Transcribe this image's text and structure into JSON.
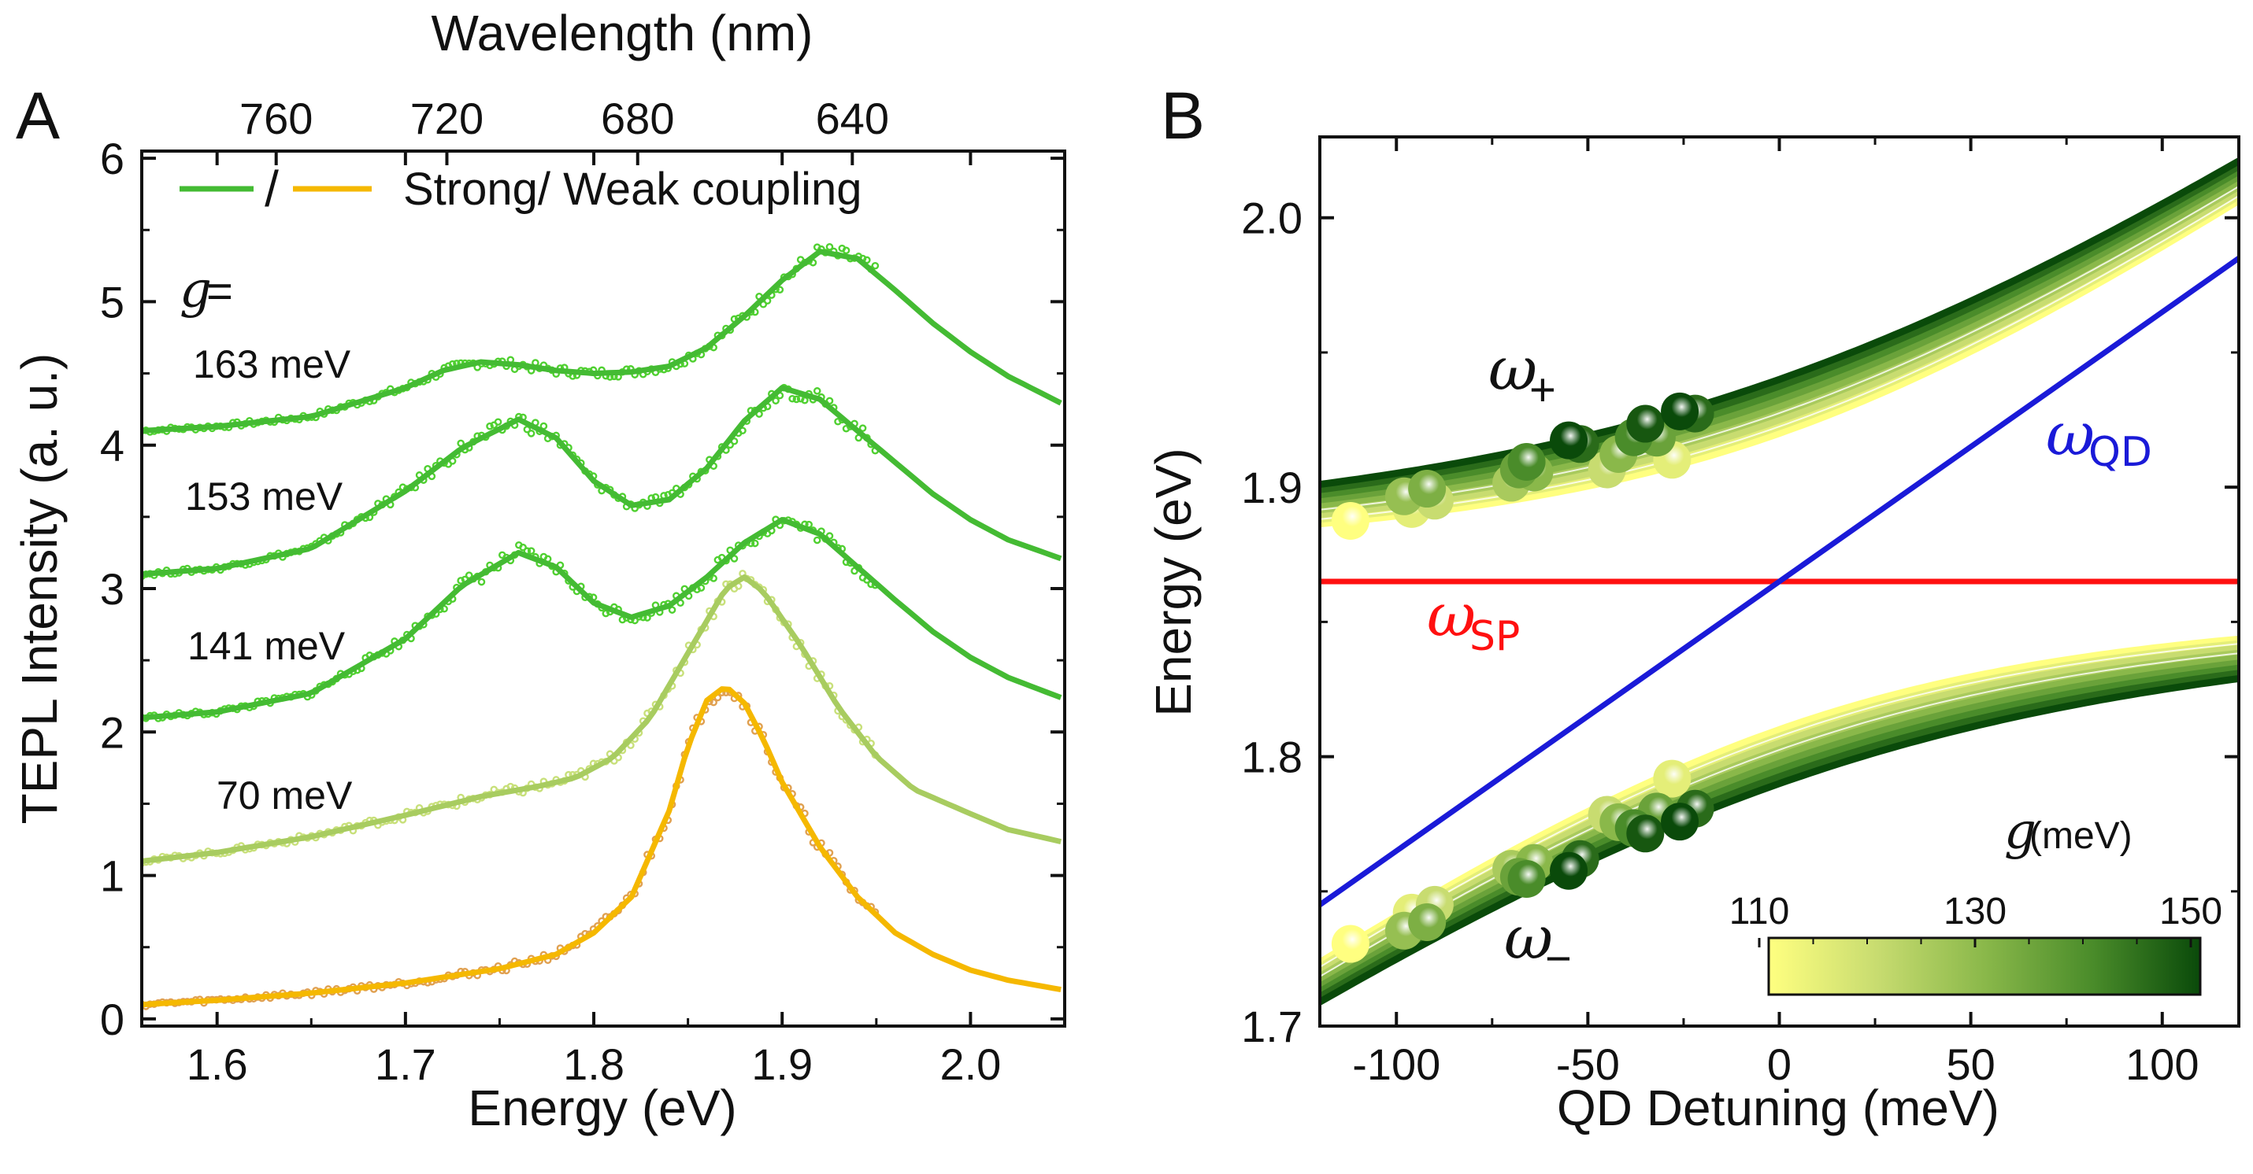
{
  "chart_data": [
    {
      "type": "line",
      "panel": "A",
      "title": "",
      "xlabel": "Energy (eV)",
      "ylabel": "TEPL Intensity (a. u.)",
      "top_xlabel": "Wavelength (nm)",
      "xlim": [
        1.56,
        2.05
      ],
      "ylim": [
        -0.05,
        6.05
      ],
      "xticks": [
        "1.6",
        "1.7",
        "1.8",
        "1.9",
        "2.0"
      ],
      "yticks": [
        "0",
        "1",
        "2",
        "3",
        "4",
        "5",
        "6"
      ],
      "top_ticks": [
        {
          "nm": 760,
          "label": "760"
        },
        {
          "nm": 720,
          "label": "720"
        },
        {
          "nm": 680,
          "label": "680"
        },
        {
          "nm": 640,
          "label": "640"
        }
      ],
      "legend": {
        "strong_symbol": "/",
        "text": "Strong/ Weak coupling",
        "strong_color": "#44bb33",
        "weak_color": "#f5b800"
      },
      "g_label": {
        "symbol": "g",
        "eq": " ="
      },
      "series": [
        {
          "name": "163 meV",
          "color": "#44bb33",
          "point_color": "#4fd030",
          "offset": 4.1,
          "fit_x": 2.05,
          "fit": [
            [
              1.56,
              0.0
            ],
            [
              1.6,
              0.03
            ],
            [
              1.65,
              0.1
            ],
            [
              1.7,
              0.3
            ],
            [
              1.72,
              0.42
            ],
            [
              1.74,
              0.48
            ],
            [
              1.76,
              0.46
            ],
            [
              1.78,
              0.42
            ],
            [
              1.8,
              0.4
            ],
            [
              1.82,
              0.41
            ],
            [
              1.84,
              0.45
            ],
            [
              1.86,
              0.58
            ],
            [
              1.88,
              0.8
            ],
            [
              1.9,
              1.05
            ],
            [
              1.92,
              1.25
            ],
            [
              1.94,
              1.2
            ],
            [
              1.96,
              0.98
            ],
            [
              1.98,
              0.75
            ],
            [
              2.0,
              0.55
            ],
            [
              2.02,
              0.38
            ],
            [
              2.05,
              0.18
            ]
          ],
          "data_x": [
            1.56,
            1.95
          ]
        },
        {
          "name": "153 meV",
          "color": "#44bb33",
          "point_color": "#4fd030",
          "offset": 3.1,
          "fit_x": 2.05,
          "fit": [
            [
              1.56,
              0.0
            ],
            [
              1.6,
              0.04
            ],
            [
              1.65,
              0.18
            ],
            [
              1.7,
              0.58
            ],
            [
              1.73,
              0.88
            ],
            [
              1.76,
              1.08
            ],
            [
              1.78,
              0.95
            ],
            [
              1.8,
              0.65
            ],
            [
              1.82,
              0.48
            ],
            [
              1.84,
              0.52
            ],
            [
              1.86,
              0.74
            ],
            [
              1.88,
              1.07
            ],
            [
              1.9,
              1.3
            ],
            [
              1.92,
              1.22
            ],
            [
              1.94,
              1.0
            ],
            [
              1.96,
              0.78
            ],
            [
              1.98,
              0.56
            ],
            [
              2.0,
              0.38
            ],
            [
              2.02,
              0.24
            ],
            [
              2.05,
              0.1
            ]
          ],
          "data_x": [
            1.56,
            1.95
          ]
        },
        {
          "name": "141 meV",
          "color": "#44bb33",
          "point_color": "#4fd030",
          "offset": 2.1,
          "fit_x": 2.05,
          "fit": [
            [
              1.56,
              0.0
            ],
            [
              1.6,
              0.04
            ],
            [
              1.65,
              0.17
            ],
            [
              1.7,
              0.55
            ],
            [
              1.73,
              0.92
            ],
            [
              1.76,
              1.15
            ],
            [
              1.78,
              1.05
            ],
            [
              1.8,
              0.8
            ],
            [
              1.82,
              0.7
            ],
            [
              1.84,
              0.78
            ],
            [
              1.86,
              0.98
            ],
            [
              1.88,
              1.22
            ],
            [
              1.9,
              1.38
            ],
            [
              1.92,
              1.28
            ],
            [
              1.94,
              1.05
            ],
            [
              1.96,
              0.82
            ],
            [
              1.98,
              0.6
            ],
            [
              2.0,
              0.42
            ],
            [
              2.02,
              0.28
            ],
            [
              2.05,
              0.13
            ]
          ],
          "data_x": [
            1.56,
            1.95
          ]
        },
        {
          "name": "70 meV",
          "color": "#a8cc60",
          "point_color": "#c8e07a",
          "offset": 1.1,
          "fit_x": 2.05,
          "fit": [
            [
              1.56,
              0.0
            ],
            [
              1.6,
              0.06
            ],
            [
              1.65,
              0.17
            ],
            [
              1.7,
              0.32
            ],
            [
              1.74,
              0.45
            ],
            [
              1.77,
              0.52
            ],
            [
              1.79,
              0.58
            ],
            [
              1.81,
              0.72
            ],
            [
              1.83,
              1.0
            ],
            [
              1.85,
              1.45
            ],
            [
              1.87,
              1.9
            ],
            [
              1.88,
              1.98
            ],
            [
              1.89,
              1.88
            ],
            [
              1.91,
              1.5
            ],
            [
              1.93,
              1.07
            ],
            [
              1.95,
              0.73
            ],
            [
              1.97,
              0.5
            ],
            [
              2.0,
              0.33
            ],
            [
              2.02,
              0.22
            ],
            [
              2.05,
              0.13
            ]
          ],
          "data_x": [
            1.56,
            1.95
          ]
        },
        {
          "name": "weak",
          "color": "#f5b800",
          "point_color": "#e0a050",
          "offset": 0.1,
          "fit_x": 2.05,
          "fit": [
            [
              1.56,
              0.0
            ],
            [
              1.6,
              0.03
            ],
            [
              1.65,
              0.08
            ],
            [
              1.7,
              0.15
            ],
            [
              1.75,
              0.25
            ],
            [
              1.78,
              0.35
            ],
            [
              1.8,
              0.5
            ],
            [
              1.82,
              0.75
            ],
            [
              1.84,
              1.35
            ],
            [
              1.85,
              1.8
            ],
            [
              1.86,
              2.12
            ],
            [
              1.87,
              2.22
            ],
            [
              1.88,
              2.1
            ],
            [
              1.89,
              1.85
            ],
            [
              1.9,
              1.55
            ],
            [
              1.92,
              1.1
            ],
            [
              1.94,
              0.75
            ],
            [
              1.96,
              0.5
            ],
            [
              1.98,
              0.35
            ],
            [
              2.0,
              0.24
            ],
            [
              2.02,
              0.17
            ],
            [
              2.05,
              0.1
            ]
          ],
          "data_x": [
            1.56,
            1.95
          ]
        }
      ]
    },
    {
      "type": "line+scatter",
      "panel": "B",
      "title": "",
      "xlabel": "QD Detuning (meV)",
      "ylabel": "Energy (eV)",
      "xlim": [
        -120,
        120
      ],
      "ylim": [
        1.7,
        2.03
      ],
      "xticks": [
        "-100",
        "-50",
        "0",
        "50",
        "100"
      ],
      "yticks": [
        "1.7",
        "1.8",
        "1.9",
        "2.0"
      ],
      "omega_sp_eV": 1.865,
      "omega_qd_slope_eV_per_meV": 0.001,
      "labels": {
        "omega_plus": {
          "symbol": "ω",
          "sub": "+"
        },
        "omega_minus": {
          "symbol": "ω",
          "sub": "−"
        },
        "omega_qd": {
          "symbol": "ω",
          "sub": "QD"
        },
        "omega_sp": {
          "symbol": "ω",
          "sub": "SP"
        }
      },
      "line_colors": {
        "sp": "#ff1010",
        "qd": "#1a1ad8"
      },
      "colorbar": {
        "title_symbol": "g",
        "title_unit": " (meV)",
        "min": 110,
        "max": 150,
        "ticks": [
          "110",
          "130",
          "150"
        ],
        "colors": [
          "#ffff80",
          "#c8dc70",
          "#8ab84a",
          "#4a8c2a",
          "#0a4a0a"
        ]
      },
      "g_values_meV": [
        110,
        115,
        120,
        125,
        130,
        135,
        140,
        145,
        150
      ],
      "points": [
        {
          "d": -112,
          "g": 110
        },
        {
          "d": -98,
          "g": 128
        },
        {
          "d": -96,
          "g": 115
        },
        {
          "d": -92,
          "g": 132
        },
        {
          "d": -90,
          "g": 120
        },
        {
          "d": -70,
          "g": 125
        },
        {
          "d": -68,
          "g": 135
        },
        {
          "d": -66,
          "g": 140
        },
        {
          "d": -64,
          "g": 130
        },
        {
          "d": -55,
          "g": 150
        },
        {
          "d": -52,
          "g": 145
        },
        {
          "d": -45,
          "g": 120
        },
        {
          "d": -42,
          "g": 130
        },
        {
          "d": -38,
          "g": 140
        },
        {
          "d": -35,
          "g": 148
        },
        {
          "d": -32,
          "g": 135
        },
        {
          "d": -28,
          "g": 115
        },
        {
          "d": -26,
          "g": 150
        },
        {
          "d": -22,
          "g": 145
        }
      ]
    }
  ],
  "labels": {
    "panel_a": "A",
    "panel_b": "B",
    "g_163": "163 meV",
    "g_153": "153 meV",
    "g_141": "141 meV",
    "g_70": "70 meV"
  }
}
